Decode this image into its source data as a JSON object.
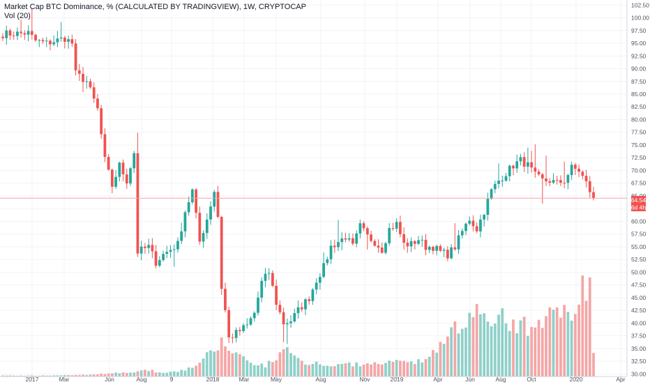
{
  "legend": {
    "title": "Market Cap BTC Dominance, % (CALCULATED BY TRADINGVIEW), 1W, CRYPTOCAP",
    "volume": "Vol (20)"
  },
  "price_badge": "64.54",
  "countdown_badge": "6d 4h",
  "colors": {
    "up": "#26a69a",
    "down": "#ef5350",
    "vol_up": "#8fd0c8",
    "vol_down": "#f4a6a6",
    "price_line": "#f4a6a6",
    "badge": "#ef5350",
    "grid": "#f0f3fa",
    "axis_text": "#4c525e"
  },
  "chart_data": {
    "type": "candlestick",
    "title": "Market Cap BTC Dominance, % (CALCULATED BY TRADINGVIEW), 1W, CRYPTOCAP",
    "y_ticks": [
      "102.50",
      "100.00",
      "97.50",
      "95.00",
      "92.50",
      "90.00",
      "87.50",
      "85.00",
      "82.50",
      "80.00",
      "77.50",
      "75.00",
      "72.50",
      "70.00",
      "67.50",
      "65.00",
      "62.50",
      "60.00",
      "57.50",
      "55.00",
      "52.50",
      "50.00",
      "47.50",
      "45.00",
      "42.50",
      "40.00",
      "37.50",
      "35.00",
      "32.50",
      "30.00"
    ],
    "x_labels": [
      "2017",
      "Mar",
      "Jun",
      "Aug",
      "9",
      "2018",
      "Mar",
      "May",
      "Aug",
      "Nov",
      "2019",
      "Apr",
      "Jun",
      "Aug",
      "Oct",
      "2020",
      "Apr"
    ],
    "ylim": [
      29.5,
      103.5
    ],
    "last_price": 64.54,
    "waypoints": [
      [
        0,
        96.8
      ],
      [
        7,
        97.0
      ],
      [
        9,
        95.5
      ],
      [
        12,
        95.0
      ],
      [
        17,
        96.0
      ],
      [
        19,
        95.0
      ],
      [
        20,
        89.0
      ],
      [
        23,
        87.5
      ],
      [
        26,
        82.0
      ],
      [
        28,
        72.0
      ],
      [
        30,
        67.0
      ],
      [
        32,
        71.0
      ],
      [
        34,
        68.0
      ],
      [
        36,
        73.5
      ],
      [
        37,
        54.0
      ],
      [
        40,
        55.0
      ],
      [
        42,
        52.0
      ],
      [
        44,
        53.5
      ],
      [
        46,
        54.5
      ],
      [
        48,
        55.5
      ],
      [
        50,
        62.0
      ],
      [
        52,
        66.0
      ],
      [
        54,
        56.0
      ],
      [
        56,
        60.5
      ],
      [
        58,
        66.0
      ],
      [
        59,
        61.0
      ],
      [
        60,
        47.0
      ],
      [
        61,
        42.5
      ],
      [
        62,
        37.0
      ],
      [
        64,
        38.0
      ],
      [
        67,
        39.5
      ],
      [
        69,
        42.0
      ],
      [
        71,
        48.0
      ],
      [
        73,
        50.0
      ],
      [
        75,
        44.0
      ],
      [
        77,
        40.0
      ],
      [
        79,
        40.5
      ],
      [
        81,
        42.5
      ],
      [
        84,
        45.0
      ],
      [
        86,
        48.5
      ],
      [
        88,
        51.0
      ],
      [
        90,
        55.0
      ],
      [
        92,
        56.0
      ],
      [
        94,
        57.0
      ],
      [
        96,
        55.0
      ],
      [
        98,
        59.0
      ],
      [
        100,
        57.0
      ],
      [
        102,
        56.0
      ],
      [
        104,
        54.5
      ],
      [
        106,
        58.5
      ],
      [
        108,
        59.5
      ],
      [
        110,
        55.5
      ],
      [
        112,
        55.5
      ],
      [
        114,
        56.5
      ],
      [
        116,
        55.0
      ],
      [
        118,
        55.0
      ],
      [
        120,
        54.0
      ],
      [
        122,
        53.5
      ],
      [
        124,
        55.0
      ],
      [
        126,
        58.0
      ],
      [
        128,
        60.5
      ],
      [
        130,
        58.5
      ],
      [
        132,
        62.0
      ],
      [
        134,
        66.0
      ],
      [
        136,
        68.0
      ],
      [
        138,
        69.5
      ],
      [
        140,
        71.0
      ],
      [
        142,
        72.0
      ],
      [
        144,
        71.0
      ],
      [
        146,
        69.0
      ],
      [
        148,
        68.0
      ],
      [
        150,
        68.0
      ],
      [
        152,
        67.5
      ],
      [
        154,
        68.0
      ],
      [
        156,
        70.5
      ],
      [
        158,
        70.0
      ],
      [
        160,
        67.5
      ],
      [
        162,
        64.5
      ]
    ],
    "volume_waypoints": [
      [
        0,
        0.5
      ],
      [
        10,
        0.5
      ],
      [
        20,
        0.8
      ],
      [
        25,
        1.0
      ],
      [
        30,
        2.0
      ],
      [
        36,
        2.5
      ],
      [
        40,
        3.5
      ],
      [
        44,
        2.0
      ],
      [
        48,
        3.0
      ],
      [
        52,
        5.0
      ],
      [
        55,
        10.0
      ],
      [
        58,
        14.0
      ],
      [
        60,
        19.0
      ],
      [
        62,
        15.0
      ],
      [
        65,
        12.0
      ],
      [
        68,
        8.0
      ],
      [
        72,
        6.0
      ],
      [
        75,
        10.0
      ],
      [
        77,
        15.0
      ],
      [
        80,
        11.0
      ],
      [
        84,
        7.0
      ],
      [
        90,
        7.0
      ],
      [
        95,
        6.5
      ],
      [
        100,
        6.5
      ],
      [
        104,
        8.0
      ],
      [
        108,
        8.0
      ],
      [
        112,
        8.0
      ],
      [
        116,
        10.0
      ],
      [
        118,
        13.0
      ],
      [
        120,
        18.0
      ],
      [
        122,
        24.0
      ],
      [
        124,
        28.0
      ],
      [
        126,
        30.0
      ],
      [
        128,
        33.0
      ],
      [
        130,
        36.0
      ],
      [
        132,
        32.0
      ],
      [
        134,
        28.0
      ],
      [
        136,
        30.0
      ],
      [
        138,
        35.0
      ],
      [
        140,
        28.0
      ],
      [
        142,
        30.0
      ],
      [
        144,
        28.0
      ],
      [
        146,
        29.0
      ],
      [
        148,
        30.0
      ],
      [
        150,
        34.0
      ],
      [
        152,
        40.0
      ],
      [
        154,
        35.0
      ],
      [
        156,
        38.0
      ],
      [
        158,
        44.0
      ],
      [
        159,
        55.0
      ],
      [
        160,
        45.0
      ],
      [
        161,
        52.0
      ],
      [
        162,
        12.0
      ]
    ]
  }
}
